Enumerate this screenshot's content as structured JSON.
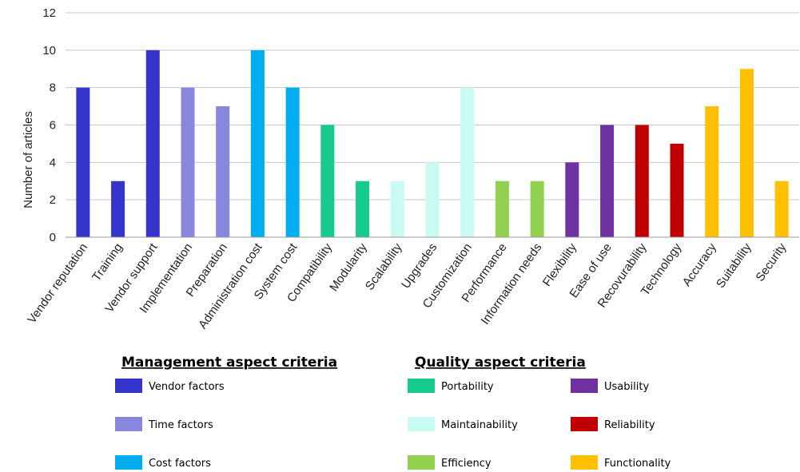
{
  "chart_data": {
    "type": "bar",
    "ylabel": "Number of articles",
    "xlabel": "",
    "ylim": [
      0,
      12
    ],
    "yticks": [
      0,
      2,
      4,
      6,
      8,
      10,
      12
    ],
    "grid": "horizontal",
    "categories": [
      "Vendor reputation",
      "Training",
      "Vendor support",
      "Implementation",
      "Preparation",
      "Administration cost",
      "System cost",
      "Compatibility",
      "Modularity",
      "Scalability",
      "Upgrades",
      "Customization",
      "Performance",
      "Information needs",
      "Flexibility",
      "Ease of use",
      "Recovurability",
      "Technology",
      "Accuracy",
      "Suitability",
      "Security"
    ],
    "values": [
      8,
      3,
      10,
      8,
      7,
      10,
      8,
      6,
      3,
      3,
      4,
      8,
      3,
      3,
      4,
      6,
      6,
      5,
      7,
      9,
      3
    ],
    "bar_groups": [
      "Vendor factors",
      "Vendor factors",
      "Vendor factors",
      "Time factors",
      "Time factors",
      "Cost factors",
      "Cost factors",
      "Portability",
      "Portability",
      "Maintainability",
      "Maintainability",
      "Maintainability",
      "Efficiency",
      "Efficiency",
      "Usability",
      "Usability",
      "Reliability",
      "Reliability",
      "Functionality",
      "Functionality",
      "Functionality"
    ],
    "legend_groups": [
      {
        "title": "Management aspect criteria",
        "items": [
          {
            "name": "Vendor factors",
            "color": "#3535CC"
          },
          {
            "name": "Time factors",
            "color": "#8787DE"
          },
          {
            "name": "Cost factors",
            "color": "#00AEEF"
          }
        ]
      },
      {
        "title": "Quality aspect criteria",
        "items": [
          {
            "name": "Portability",
            "color": "#16C98D"
          },
          {
            "name": "Maintainability",
            "color": "#C9FBF3"
          },
          {
            "name": "Efficiency",
            "color": "#92D050"
          },
          {
            "name": "Usability",
            "color": "#7030A0"
          },
          {
            "name": "Reliability",
            "color": "#C00000"
          },
          {
            "name": "Functionality",
            "color": "#FFC000"
          }
        ]
      }
    ]
  }
}
